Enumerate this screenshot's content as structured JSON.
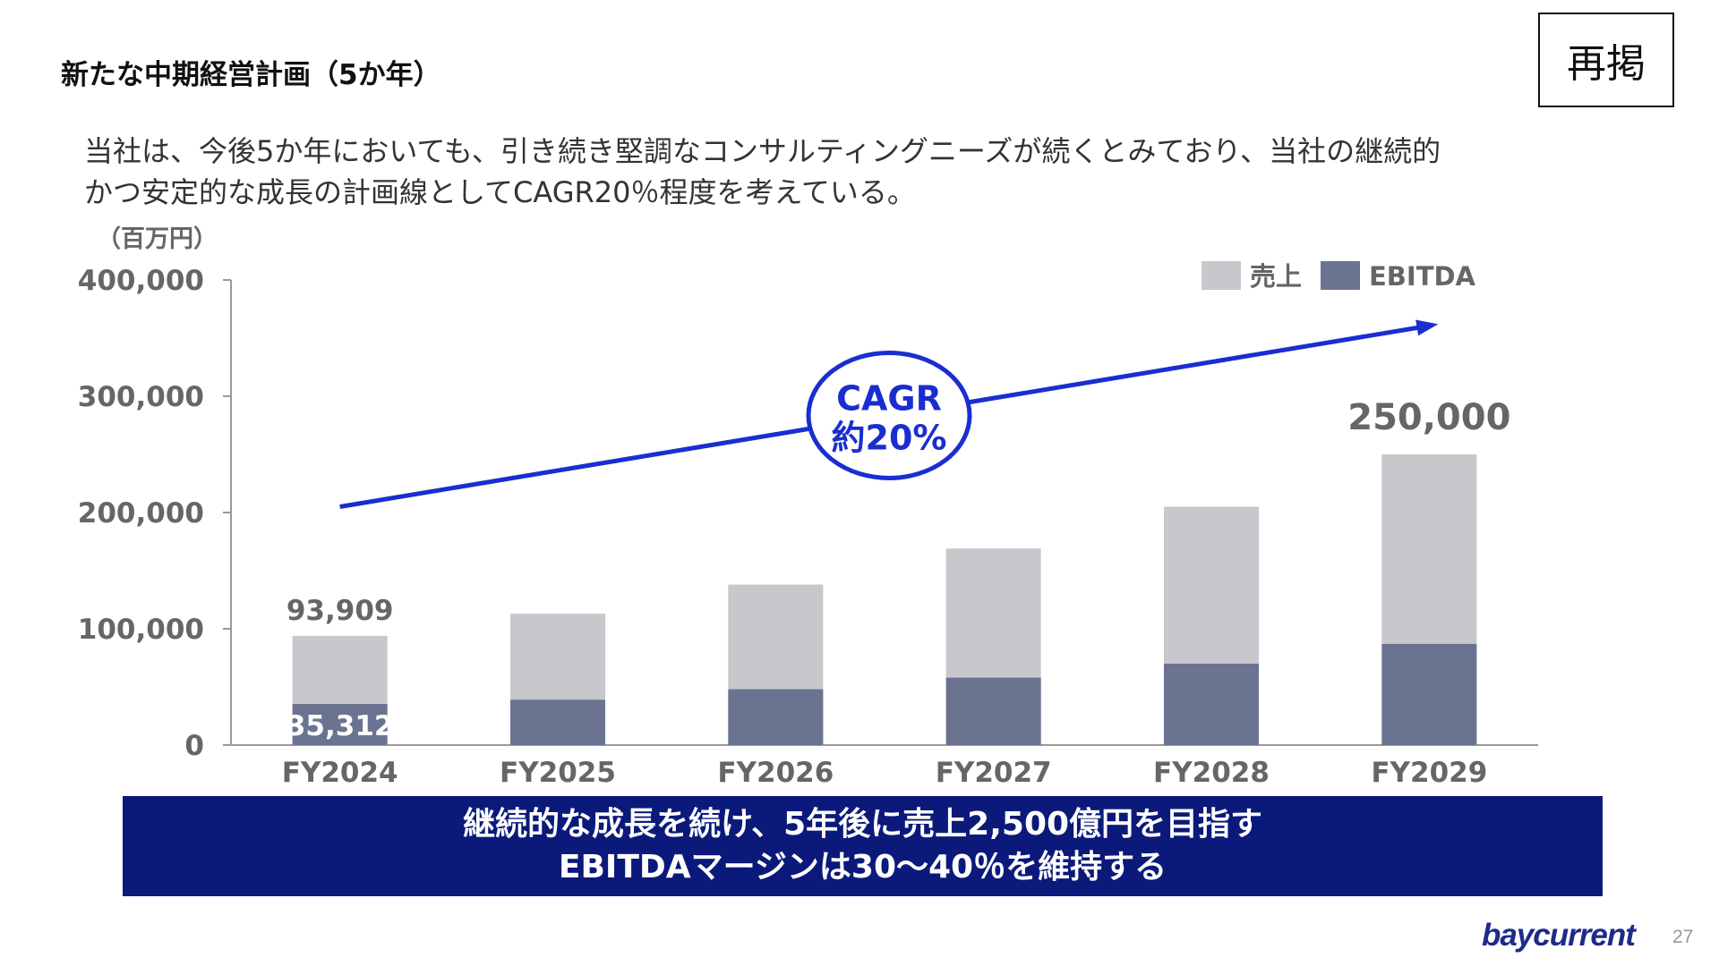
{
  "slide": {
    "title": "新たな中期経営計画（5か年）",
    "badge": "再掲",
    "lead_line1": "当社は、今後5か年においても、引き続き堅調なコンサルティングニーズが続くとみており、当社の継続的",
    "lead_line2": "かつ安定的な成長の計画線としてCAGR20％程度を考えている。",
    "banner_line1": "継続的な成長を続け、5年後に売上2,500億円を目指す",
    "banner_line2": "EBITDAマージンは30～40％を維持する",
    "logo": "baycurrent",
    "page_number": "27"
  },
  "colors": {
    "sales": "#c8c8cc",
    "ebitda": "#6a7390",
    "arrow": "#1a2ed0",
    "axis_text": "#666666",
    "banner": "#0b1a7a"
  },
  "chart_data": {
    "type": "bar",
    "stacked": false,
    "overlaid": true,
    "unit_label": "（百万円）",
    "categories": [
      "FY2024",
      "FY2025",
      "FY2026",
      "FY2027",
      "FY2028",
      "FY2029"
    ],
    "series": [
      {
        "name": "売上",
        "values": [
          93909,
          113000,
          138000,
          169000,
          205000,
          250000
        ]
      },
      {
        "name": "EBITDA",
        "values": [
          35312,
          39000,
          48000,
          58000,
          70000,
          87000
        ]
      }
    ],
    "data_labels": [
      {
        "series": "売上",
        "category": "FY2024",
        "text": "93,909"
      },
      {
        "series": "EBITDA",
        "category": "FY2024",
        "text": "35,312"
      },
      {
        "series": "売上",
        "category": "FY2029",
        "text": "250,000"
      }
    ],
    "y_ticks": [
      0,
      100000,
      200000,
      300000,
      400000
    ],
    "y_tick_labels": [
      "0",
      "100,000",
      "200,000",
      "300,000",
      "400,000"
    ],
    "ylim": [
      0,
      400000
    ],
    "legend_position": "top-right",
    "grid": false,
    "annotation": {
      "text_line1": "CAGR",
      "text_line2": "約20%",
      "arrow_from": {
        "category": "FY2024",
        "y": 205000
      },
      "arrow_to": {
        "category": "FY2029",
        "y": 362000
      }
    }
  }
}
